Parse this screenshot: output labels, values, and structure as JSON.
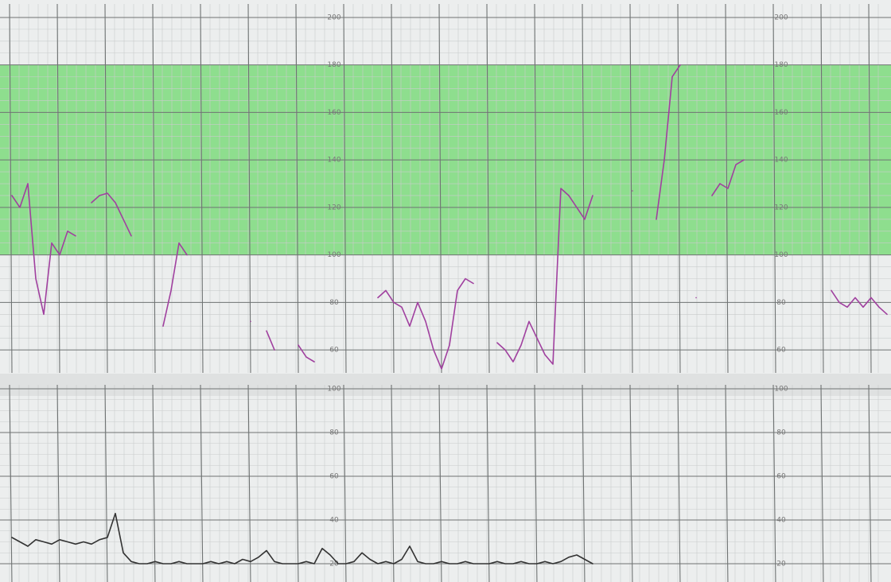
{
  "chart_data": [
    {
      "type": "line",
      "ylim": [
        52,
        204
      ],
      "yticks": [
        60,
        80,
        100,
        120,
        140,
        160,
        180,
        200
      ],
      "band": [
        100,
        180
      ],
      "band_color": "#8ede8e",
      "grid": true,
      "series": [
        {
          "color": "#a0409f",
          "values": [
            125,
            120,
            130,
            90,
            75,
            105,
            100,
            110,
            108,
            null,
            122,
            125,
            126,
            122,
            115,
            108,
            null,
            null,
            null,
            70,
            85,
            105,
            100,
            null,
            null,
            null,
            null,
            null,
            null,
            null,
            72,
            null,
            68,
            60,
            null,
            null,
            62,
            57,
            55,
            null,
            null,
            null,
            null,
            null,
            null,
            null,
            82,
            85,
            80,
            78,
            70,
            80,
            72,
            60,
            52,
            62,
            85,
            90,
            88,
            null,
            null,
            63,
            60,
            55,
            62,
            72,
            65,
            58,
            54,
            128,
            125,
            120,
            115,
            125,
            null,
            null,
            null,
            null,
            127,
            null,
            null,
            115,
            140,
            175,
            180,
            null,
            82,
            null,
            125,
            130,
            128,
            138,
            140,
            null,
            null,
            null,
            null,
            null,
            null,
            null,
            null,
            null,
            null,
            85,
            80,
            78,
            82,
            78,
            82,
            78,
            75
          ]
        }
      ]
    },
    {
      "type": "line",
      "ylim": [
        12,
        100
      ],
      "yticks": [
        20,
        40,
        60,
        80,
        100
      ],
      "grid": true,
      "series": [
        {
          "color": "#333333",
          "values": [
            32,
            30,
            28,
            31,
            30,
            29,
            31,
            30,
            29,
            30,
            29,
            31,
            32,
            43,
            25,
            21,
            20,
            20,
            21,
            20,
            20,
            21,
            20,
            20,
            20,
            21,
            20,
            21,
            20,
            22,
            21,
            23,
            26,
            21,
            20,
            20,
            20,
            21,
            20,
            27,
            24,
            20,
            20,
            21,
            25,
            22,
            20,
            21,
            20,
            22,
            28,
            21,
            20,
            20,
            21,
            20,
            20,
            21,
            20,
            20,
            20,
            21,
            20,
            20,
            21,
            20,
            20,
            21,
            20,
            21,
            23,
            24,
            22,
            20,
            null,
            null,
            null,
            null,
            null,
            null,
            null,
            null,
            null,
            null,
            null,
            null,
            null,
            null,
            null,
            null,
            null,
            null,
            null,
            null,
            null,
            null,
            null,
            null,
            null,
            null,
            null,
            null,
            null,
            null,
            null,
            null,
            null,
            null,
            null,
            null,
            null
          ]
        }
      ]
    }
  ]
}
